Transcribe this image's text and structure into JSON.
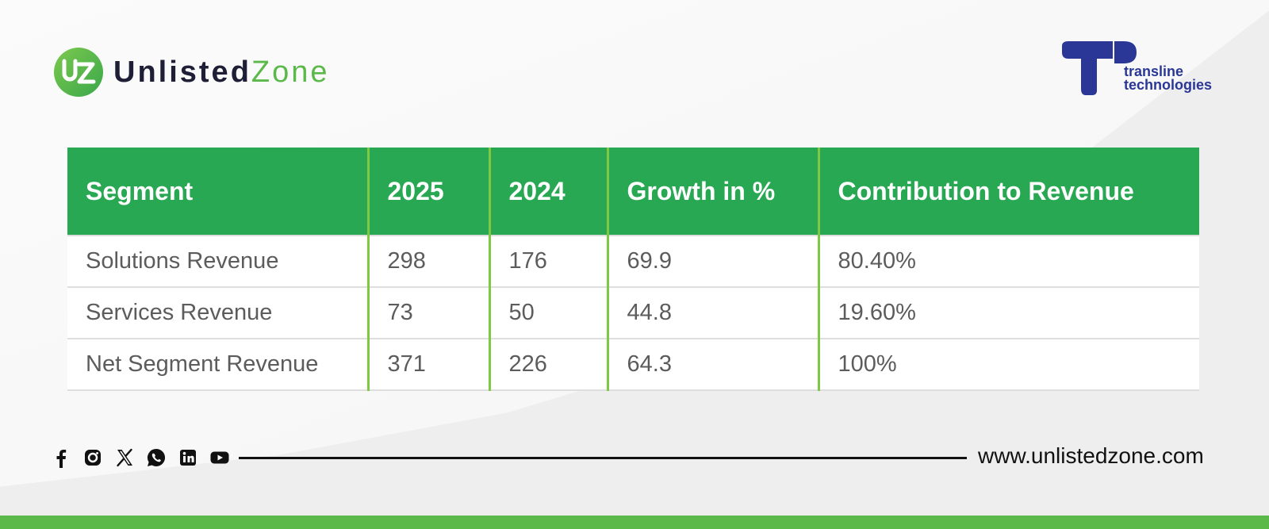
{
  "brand": {
    "name_part1": "Unlisted",
    "name_part2": "Zone",
    "mark_letters": "UZ"
  },
  "partner": {
    "line1": "transline",
    "line2": "technologies"
  },
  "table": {
    "headers": [
      "Segment",
      "2025",
      "2024",
      "Growth in %",
      "Contribution to Revenue"
    ],
    "rows": [
      [
        "Solutions Revenue",
        "298",
        "176",
        "69.9",
        "80.40%"
      ],
      [
        "Services Revenue",
        "73",
        "50",
        "44.8",
        "19.60%"
      ],
      [
        "Net Segment Revenue",
        "371",
        "226",
        "64.3",
        "100%"
      ]
    ]
  },
  "footer": {
    "website": "www.unlistedzone.com",
    "social_icons": [
      "facebook-icon",
      "instagram-icon",
      "x-icon",
      "whatsapp-icon",
      "linkedin-icon",
      "youtube-icon"
    ]
  },
  "colors": {
    "header_green": "#29a853",
    "divider_green": "#7ec843",
    "brand_green": "#5bb94a",
    "brand_dark": "#1e1f36",
    "partner_blue": "#2a3796"
  }
}
